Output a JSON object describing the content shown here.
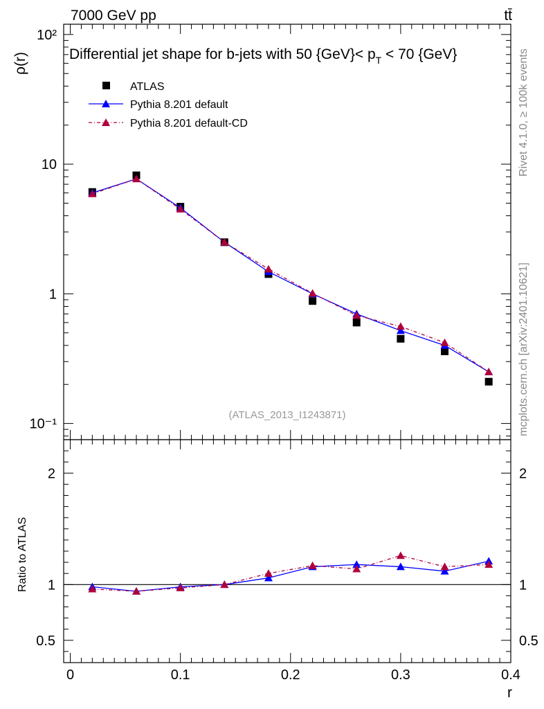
{
  "header": {
    "energy_label": "7000 GeV pp",
    "process_label": "tt̄",
    "side_label_top": "Rivet 4.1.0, ≥ 100k events",
    "side_label_bottom": "mcplots.cern.ch [arXiv:2401.10621]",
    "analysis_id": "(ATLAS_2013_I1243871)"
  },
  "chart_data": [
    {
      "type": "scatter",
      "panel": "main",
      "title": "Differential jet shape for b-jets with 50 {GeV}< p_T < 70 {GeV}",
      "title_parts": {
        "prefix": "Differential jet shape for b-jets with 50 {GeV}< p",
        "subscript": "T",
        "suffix": " < 70 {GeV}"
      },
      "xlabel": "r",
      "ylabel": "ρ(r)",
      "yscale": "log",
      "xlim": [
        -0.006,
        0.4
      ],
      "ylim": [
        0.075,
        120
      ],
      "ytick_labels": [
        "10⁻¹",
        "1",
        "10",
        "10²"
      ],
      "legend_position": "top-left",
      "x": [
        0.02,
        0.06,
        0.1,
        0.14,
        0.18,
        0.22,
        0.26,
        0.3,
        0.34,
        0.38
      ],
      "series": [
        {
          "name": "ATLAS",
          "color": "#000000",
          "style": "marker-square",
          "values": [
            6.1,
            8.2,
            4.7,
            2.5,
            1.42,
            0.88,
            0.6,
            0.45,
            0.36,
            0.21
          ]
        },
        {
          "name": "Pythia 8.201 default",
          "color": "#0000ff",
          "style": "solid-triangle",
          "values": [
            6.0,
            7.7,
            4.6,
            2.5,
            1.48,
            1.0,
            0.7,
            0.52,
            0.4,
            0.25
          ]
        },
        {
          "name": "Pythia 8.201 default-CD",
          "color": "#b0003a",
          "style": "dashdot-triangle",
          "values": [
            5.9,
            7.7,
            4.5,
            2.5,
            1.55,
            1.01,
            0.68,
            0.56,
            0.42,
            0.25
          ]
        }
      ]
    },
    {
      "type": "line",
      "panel": "ratio",
      "ylabel": "Ratio to ATLAS",
      "xlabel": "r",
      "xlim": [
        -0.006,
        0.4
      ],
      "ylim": [
        0.3,
        2.3
      ],
      "ytick_labels": [
        "0.5",
        "1",
        "2"
      ],
      "xtick_labels": [
        "0",
        "0.1",
        "0.2",
        "0.3",
        "0.4"
      ],
      "reference_line": 1,
      "x": [
        0.02,
        0.06,
        0.1,
        0.14,
        0.18,
        0.22,
        0.26,
        0.3,
        0.34,
        0.38
      ],
      "series": [
        {
          "name": "Pythia 8.201 default",
          "color": "#0000ff",
          "style": "solid-triangle",
          "values": [
            0.98,
            0.94,
            0.98,
            1.0,
            1.06,
            1.16,
            1.18,
            1.16,
            1.12,
            1.21
          ]
        },
        {
          "name": "Pythia 8.201 default-CD",
          "color": "#b0003a",
          "style": "dashdot-triangle",
          "values": [
            0.96,
            0.94,
            0.97,
            1.0,
            1.1,
            1.17,
            1.14,
            1.26,
            1.16,
            1.18
          ]
        }
      ]
    }
  ]
}
